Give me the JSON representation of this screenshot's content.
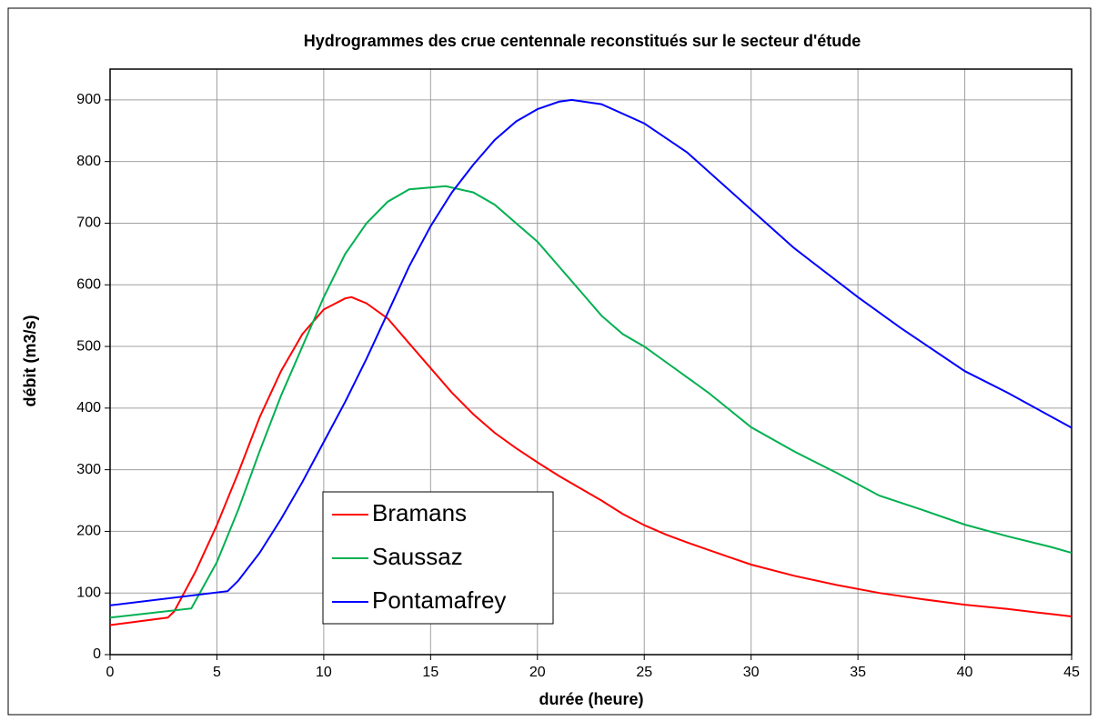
{
  "chart_data": {
    "type": "line",
    "title": "Hydrogrammes des crue centennale reconstitués sur le secteur d'étude",
    "x_label": "durée (heure)",
    "y_label": "débit (m3/s)",
    "xlim": [
      0,
      45
    ],
    "xticks": [
      0,
      5,
      10,
      15,
      20,
      25,
      30,
      35,
      40,
      45
    ],
    "ylim": [
      0,
      950
    ],
    "yticks": [
      0,
      100,
      200,
      300,
      400,
      500,
      600,
      700,
      800,
      900
    ],
    "grid": true,
    "series": [
      {
        "name": "Bramans",
        "color": "#ff0000",
        "x": [
          0,
          2.7,
          3,
          4,
          5,
          6,
          7,
          8,
          9,
          10,
          11,
          11.3,
          12,
          13,
          14,
          15,
          16,
          17,
          18,
          19,
          20,
          21,
          22,
          23,
          24,
          25,
          26,
          27,
          28,
          29,
          30,
          32,
          34,
          36,
          38,
          40,
          42,
          44,
          45
        ],
        "values": [
          48,
          60,
          70,
          135,
          210,
          295,
          385,
          460,
          520,
          560,
          578,
          580,
          570,
          545,
          505,
          465,
          425,
          390,
          360,
          335,
          312,
          290,
          270,
          250,
          228,
          210,
          195,
          182,
          170,
          158,
          146,
          128,
          113,
          100,
          90,
          81,
          74,
          66,
          62
        ]
      },
      {
        "name": "Saussaz",
        "color": "#00b050",
        "x": [
          0,
          3.8,
          5,
          6,
          7,
          8,
          9,
          10,
          11,
          12,
          13,
          14,
          15.7,
          17,
          18,
          19,
          20,
          21,
          22,
          23,
          24,
          25,
          26,
          27,
          28,
          29,
          30,
          32,
          34,
          36,
          38,
          40,
          42,
          44,
          45
        ],
        "values": [
          60,
          75,
          150,
          235,
          330,
          420,
          500,
          580,
          650,
          700,
          735,
          755,
          760,
          750,
          730,
          700,
          670,
          630,
          590,
          550,
          520,
          500,
          475,
          450,
          425,
          397,
          369,
          330,
          295,
          258,
          235,
          211,
          192,
          175,
          165
        ]
      },
      {
        "name": "Pontamafrey",
        "color": "#0000ff",
        "x": [
          0,
          5.5,
          6,
          7,
          8,
          9,
          10,
          11,
          12,
          13,
          14,
          15,
          16,
          17,
          18,
          19,
          20,
          21,
          21.6,
          23,
          25,
          27,
          30,
          32,
          35,
          37,
          40,
          42,
          45
        ],
        "values": [
          80,
          103,
          120,
          165,
          220,
          280,
          345,
          410,
          480,
          555,
          630,
          695,
          750,
          795,
          835,
          865,
          885,
          897,
          900,
          893,
          862,
          815,
          722,
          660,
          580,
          530,
          460,
          425,
          368
        ]
      }
    ]
  }
}
